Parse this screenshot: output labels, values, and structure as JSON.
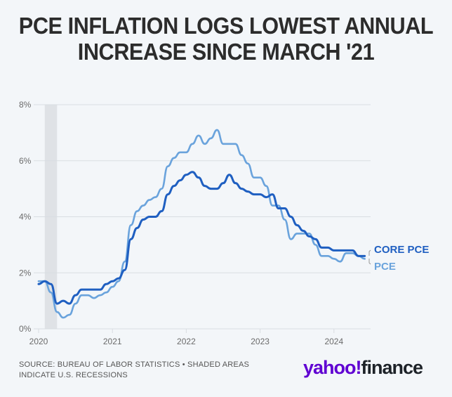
{
  "title": "PCE INFLATION LOGS LOWEST ANNUAL INCREASE SINCE MARCH '21",
  "source": "SOURCE: BUREAU OF LABOR STATISTICS • SHADED AREAS INDICATE U.S. RECESSIONS",
  "logo": {
    "brand": "yahoo!",
    "product": "finance"
  },
  "colors": {
    "core_pce": "#1f5fc1",
    "pce": "#6aa3dc",
    "recession": "#dfe2e6",
    "grid": "#d9dde2"
  },
  "chart_data": {
    "type": "line",
    "title": "PCE INFLATION LOGS LOWEST ANNUAL INCREASE SINCE MARCH '21",
    "xlabel": "",
    "ylabel": "",
    "x_start": "2020-01",
    "x_frequency": "monthly",
    "xlim": [
      "2020-01",
      "2024-06"
    ],
    "ylim": [
      0,
      8
    ],
    "y_ticks": [
      "0%",
      "2%",
      "4%",
      "6%",
      "8%"
    ],
    "y_tick_values": [
      0,
      2,
      4,
      6,
      8
    ],
    "x_ticks": [
      "2020",
      "2021",
      "2022",
      "2023",
      "2024"
    ],
    "grid": true,
    "legend_placement": "right-end-of-lines",
    "recessions": [
      {
        "start": "2020-02",
        "end": "2020-04"
      }
    ],
    "series": [
      {
        "name": "CORE PCE",
        "values": [
          1.6,
          1.7,
          1.6,
          0.9,
          1.0,
          0.9,
          1.2,
          1.4,
          1.4,
          1.4,
          1.4,
          1.6,
          1.7,
          1.8,
          2.1,
          3.2,
          3.6,
          3.9,
          4.0,
          4.0,
          4.2,
          4.8,
          5.1,
          5.3,
          5.5,
          5.6,
          5.4,
          5.1,
          5.0,
          5.0,
          5.2,
          5.5,
          5.2,
          5.0,
          4.9,
          4.8,
          4.8,
          4.7,
          4.8,
          4.3,
          4.3,
          4.0,
          3.7,
          3.5,
          3.3,
          3.2,
          2.9,
          2.9,
          2.8,
          2.8,
          2.8,
          2.8,
          2.6,
          2.6
        ]
      },
      {
        "name": "PCE",
        "values": [
          1.7,
          1.7,
          1.3,
          0.6,
          0.4,
          0.5,
          0.9,
          1.2,
          1.2,
          1.1,
          1.2,
          1.3,
          1.5,
          1.7,
          2.4,
          3.7,
          4.2,
          4.4,
          4.6,
          4.7,
          5.0,
          5.8,
          6.1,
          6.3,
          6.3,
          6.6,
          6.9,
          6.6,
          6.8,
          7.1,
          6.6,
          6.6,
          6.6,
          6.2,
          5.9,
          5.4,
          5.4,
          5.1,
          4.4,
          4.4,
          3.9,
          3.2,
          3.4,
          3.4,
          3.4,
          3.0,
          2.6,
          2.6,
          2.5,
          2.4,
          2.7,
          2.7,
          2.6,
          2.5
        ]
      }
    ]
  }
}
